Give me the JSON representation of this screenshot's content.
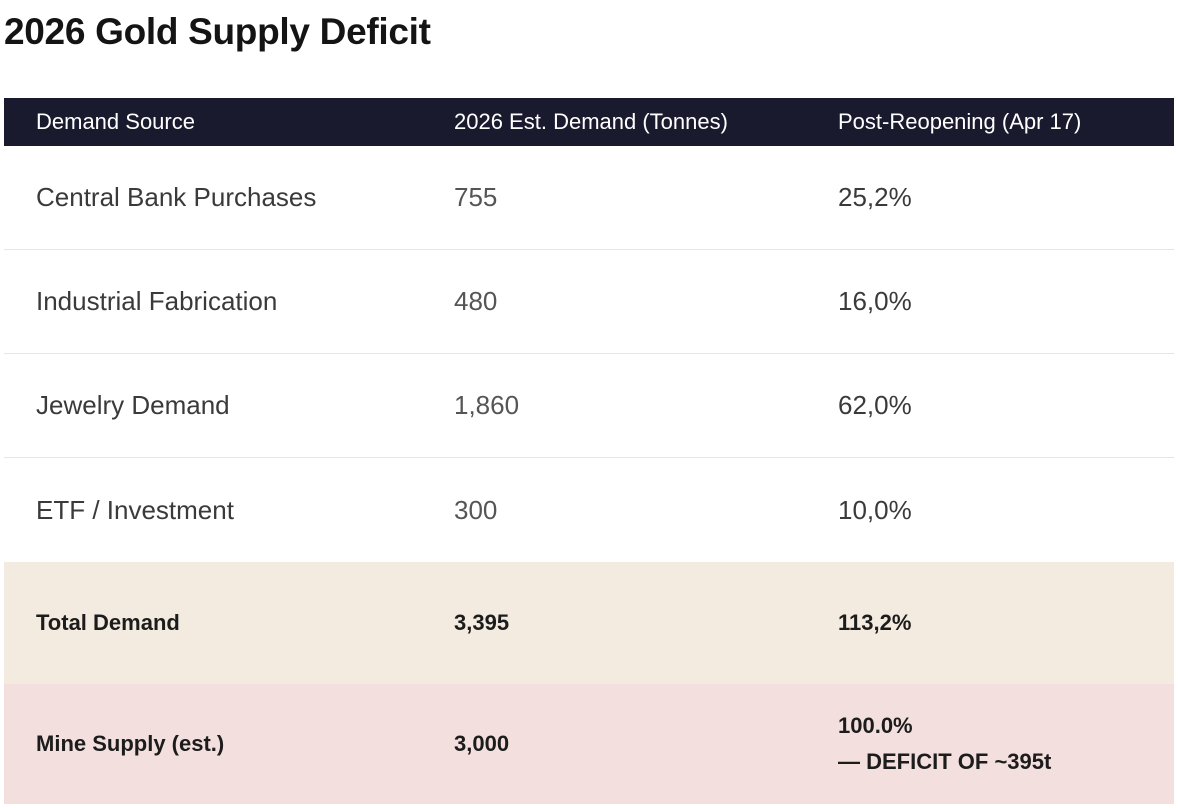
{
  "title": "2026 Gold Supply Deficit",
  "table": {
    "headers": [
      "Demand Source",
      "2026 Est. Demand (Tonnes)",
      "Post-Reopening (Apr 17)"
    ],
    "rows": [
      {
        "source": "Central Bank Purchases",
        "demand": "755",
        "share": "25,2%"
      },
      {
        "source": "Industrial Fabrication",
        "demand": "480",
        "share": "16,0%"
      },
      {
        "source": "Jewelry Demand",
        "demand": "1,860",
        "share": "62,0%"
      },
      {
        "source": "ETF / Investment",
        "demand": "300",
        "share": "10,0%"
      }
    ],
    "total": {
      "source": "Total Demand",
      "demand": "3,395",
      "share": "113,2%"
    },
    "supply": {
      "source": "Mine Supply (est.)",
      "demand": "3,000",
      "share": "100.0%",
      "note": "— DEFICIT OF ~395t"
    }
  },
  "colors": {
    "header_bg": "#1a1a2e",
    "total_bg": "#f3ebdf",
    "supply_bg": "#f4dfdf"
  }
}
